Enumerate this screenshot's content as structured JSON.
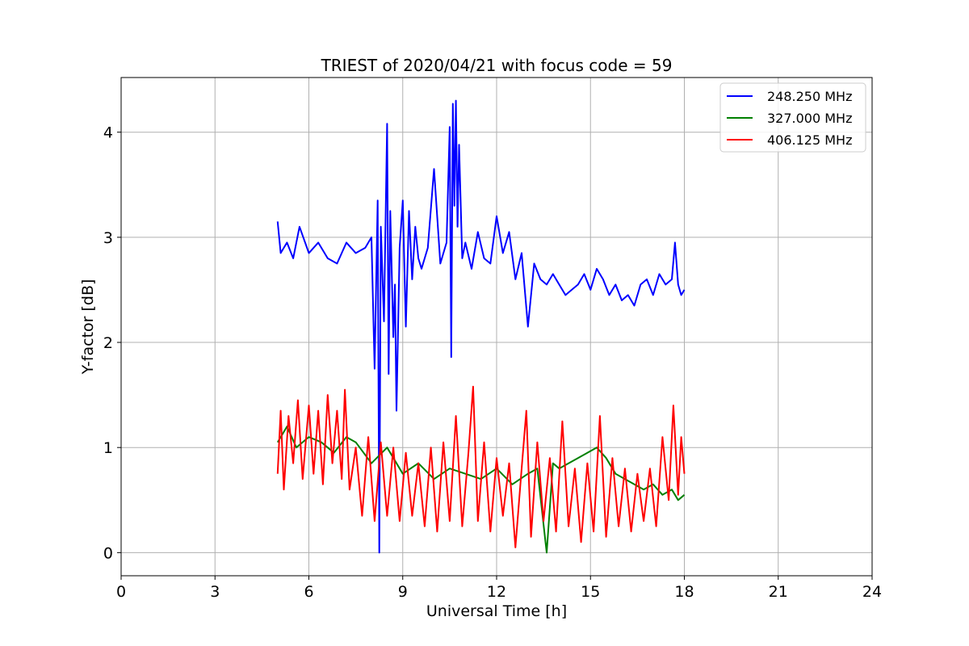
{
  "chart_data": {
    "type": "line",
    "title": "TRIEST of 2020/04/21 with focus code = 59",
    "xlabel": "Universal Time [h]",
    "ylabel": "Y-factor [dB]",
    "xlim": [
      0,
      24
    ],
    "ylim": [
      -0.22,
      4.52
    ],
    "xticks": [
      0,
      3,
      6,
      9,
      12,
      15,
      18,
      21,
      24
    ],
    "yticks": [
      0,
      1,
      2,
      3,
      4
    ],
    "grid": true,
    "legend_position": "top-right",
    "series": [
      {
        "name": "248.250 MHz",
        "color": "#0000ff",
        "x": [
          5.0,
          5.1,
          5.3,
          5.5,
          5.7,
          6.0,
          6.3,
          6.6,
          6.9,
          7.2,
          7.5,
          7.8,
          8.0,
          8.1,
          8.2,
          8.25,
          8.3,
          8.4,
          8.5,
          8.55,
          8.6,
          8.7,
          8.75,
          8.8,
          8.9,
          9.0,
          9.1,
          9.2,
          9.3,
          9.4,
          9.5,
          9.6,
          9.8,
          10.0,
          10.2,
          10.4,
          10.5,
          10.55,
          10.6,
          10.65,
          10.7,
          10.75,
          10.8,
          10.9,
          11.0,
          11.2,
          11.4,
          11.6,
          11.8,
          12.0,
          12.2,
          12.4,
          12.6,
          12.8,
          13.0,
          13.2,
          13.4,
          13.6,
          13.8,
          14.0,
          14.2,
          14.4,
          14.6,
          14.8,
          15.0,
          15.2,
          15.4,
          15.6,
          15.8,
          16.0,
          16.2,
          16.4,
          16.6,
          16.8,
          17.0,
          17.2,
          17.4,
          17.6,
          17.7,
          17.8,
          17.9,
          18.0
        ],
        "values": [
          3.15,
          2.85,
          2.95,
          2.8,
          3.1,
          2.85,
          2.95,
          2.8,
          2.75,
          2.95,
          2.85,
          2.9,
          3.0,
          1.75,
          3.35,
          0.0,
          3.1,
          2.2,
          4.08,
          1.7,
          3.25,
          2.05,
          2.55,
          1.35,
          2.9,
          3.35,
          2.15,
          3.25,
          2.6,
          3.1,
          2.8,
          2.7,
          2.9,
          3.65,
          2.75,
          2.95,
          4.05,
          1.86,
          4.27,
          3.3,
          4.3,
          3.1,
          3.88,
          2.8,
          2.95,
          2.7,
          3.05,
          2.8,
          2.75,
          3.2,
          2.85,
          3.05,
          2.6,
          2.85,
          2.15,
          2.75,
          2.6,
          2.55,
          2.65,
          2.55,
          2.45,
          2.5,
          2.55,
          2.65,
          2.5,
          2.7,
          2.6,
          2.45,
          2.55,
          2.4,
          2.45,
          2.35,
          2.55,
          2.6,
          2.45,
          2.65,
          2.55,
          2.6,
          2.95,
          2.55,
          2.45,
          2.5
        ]
      },
      {
        "name": "327.000 MHz",
        "color": "#008000",
        "x": [
          5.0,
          5.3,
          5.6,
          6.0,
          6.4,
          6.8,
          7.2,
          7.5,
          8.0,
          8.5,
          9.0,
          9.5,
          10.0,
          10.5,
          11.0,
          11.5,
          12.0,
          12.5,
          13.0,
          13.3,
          13.6,
          13.8,
          14.0,
          14.3,
          14.6,
          14.9,
          15.2,
          15.5,
          15.8,
          16.1,
          16.4,
          16.7,
          17.0,
          17.3,
          17.6,
          17.8,
          18.0
        ],
        "values": [
          1.05,
          1.2,
          1.0,
          1.1,
          1.05,
          0.95,
          1.1,
          1.05,
          0.85,
          1.0,
          0.75,
          0.85,
          0.7,
          0.8,
          0.75,
          0.7,
          0.8,
          0.65,
          0.75,
          0.8,
          0.0,
          0.85,
          0.8,
          0.85,
          0.9,
          0.95,
          1.0,
          0.9,
          0.75,
          0.7,
          0.65,
          0.6,
          0.65,
          0.55,
          0.6,
          0.5,
          0.55
        ]
      },
      {
        "name": "406.125 MHz",
        "color": "#ff0000",
        "x": [
          5.0,
          5.1,
          5.2,
          5.35,
          5.5,
          5.65,
          5.8,
          6.0,
          6.15,
          6.3,
          6.45,
          6.6,
          6.75,
          6.9,
          7.05,
          7.15,
          7.3,
          7.5,
          7.7,
          7.9,
          8.1,
          8.3,
          8.5,
          8.7,
          8.9,
          9.1,
          9.3,
          9.5,
          9.7,
          9.9,
          10.1,
          10.3,
          10.5,
          10.7,
          10.9,
          11.1,
          11.25,
          11.4,
          11.6,
          11.8,
          12.0,
          12.2,
          12.4,
          12.6,
          12.8,
          12.95,
          13.1,
          13.3,
          13.5,
          13.7,
          13.9,
          14.1,
          14.3,
          14.5,
          14.7,
          14.9,
          15.1,
          15.3,
          15.5,
          15.7,
          15.9,
          16.1,
          16.3,
          16.5,
          16.7,
          16.9,
          17.1,
          17.3,
          17.5,
          17.65,
          17.8,
          17.9,
          18.0
        ],
        "values": [
          0.75,
          1.35,
          0.6,
          1.3,
          0.85,
          1.45,
          0.7,
          1.4,
          0.75,
          1.35,
          0.65,
          1.5,
          0.85,
          1.35,
          0.7,
          1.55,
          0.6,
          1.0,
          0.35,
          1.1,
          0.3,
          1.05,
          0.35,
          1.0,
          0.3,
          0.95,
          0.35,
          0.85,
          0.25,
          1.0,
          0.2,
          1.05,
          0.3,
          1.3,
          0.25,
          0.95,
          1.58,
          0.3,
          1.05,
          0.2,
          0.9,
          0.35,
          0.85,
          0.05,
          0.8,
          1.35,
          0.15,
          1.05,
          0.3,
          0.9,
          0.2,
          1.25,
          0.25,
          0.8,
          0.1,
          0.85,
          0.2,
          1.3,
          0.15,
          0.9,
          0.25,
          0.8,
          0.2,
          0.75,
          0.3,
          0.8,
          0.25,
          1.1,
          0.5,
          1.4,
          0.55,
          1.1,
          0.75
        ]
      }
    ]
  }
}
